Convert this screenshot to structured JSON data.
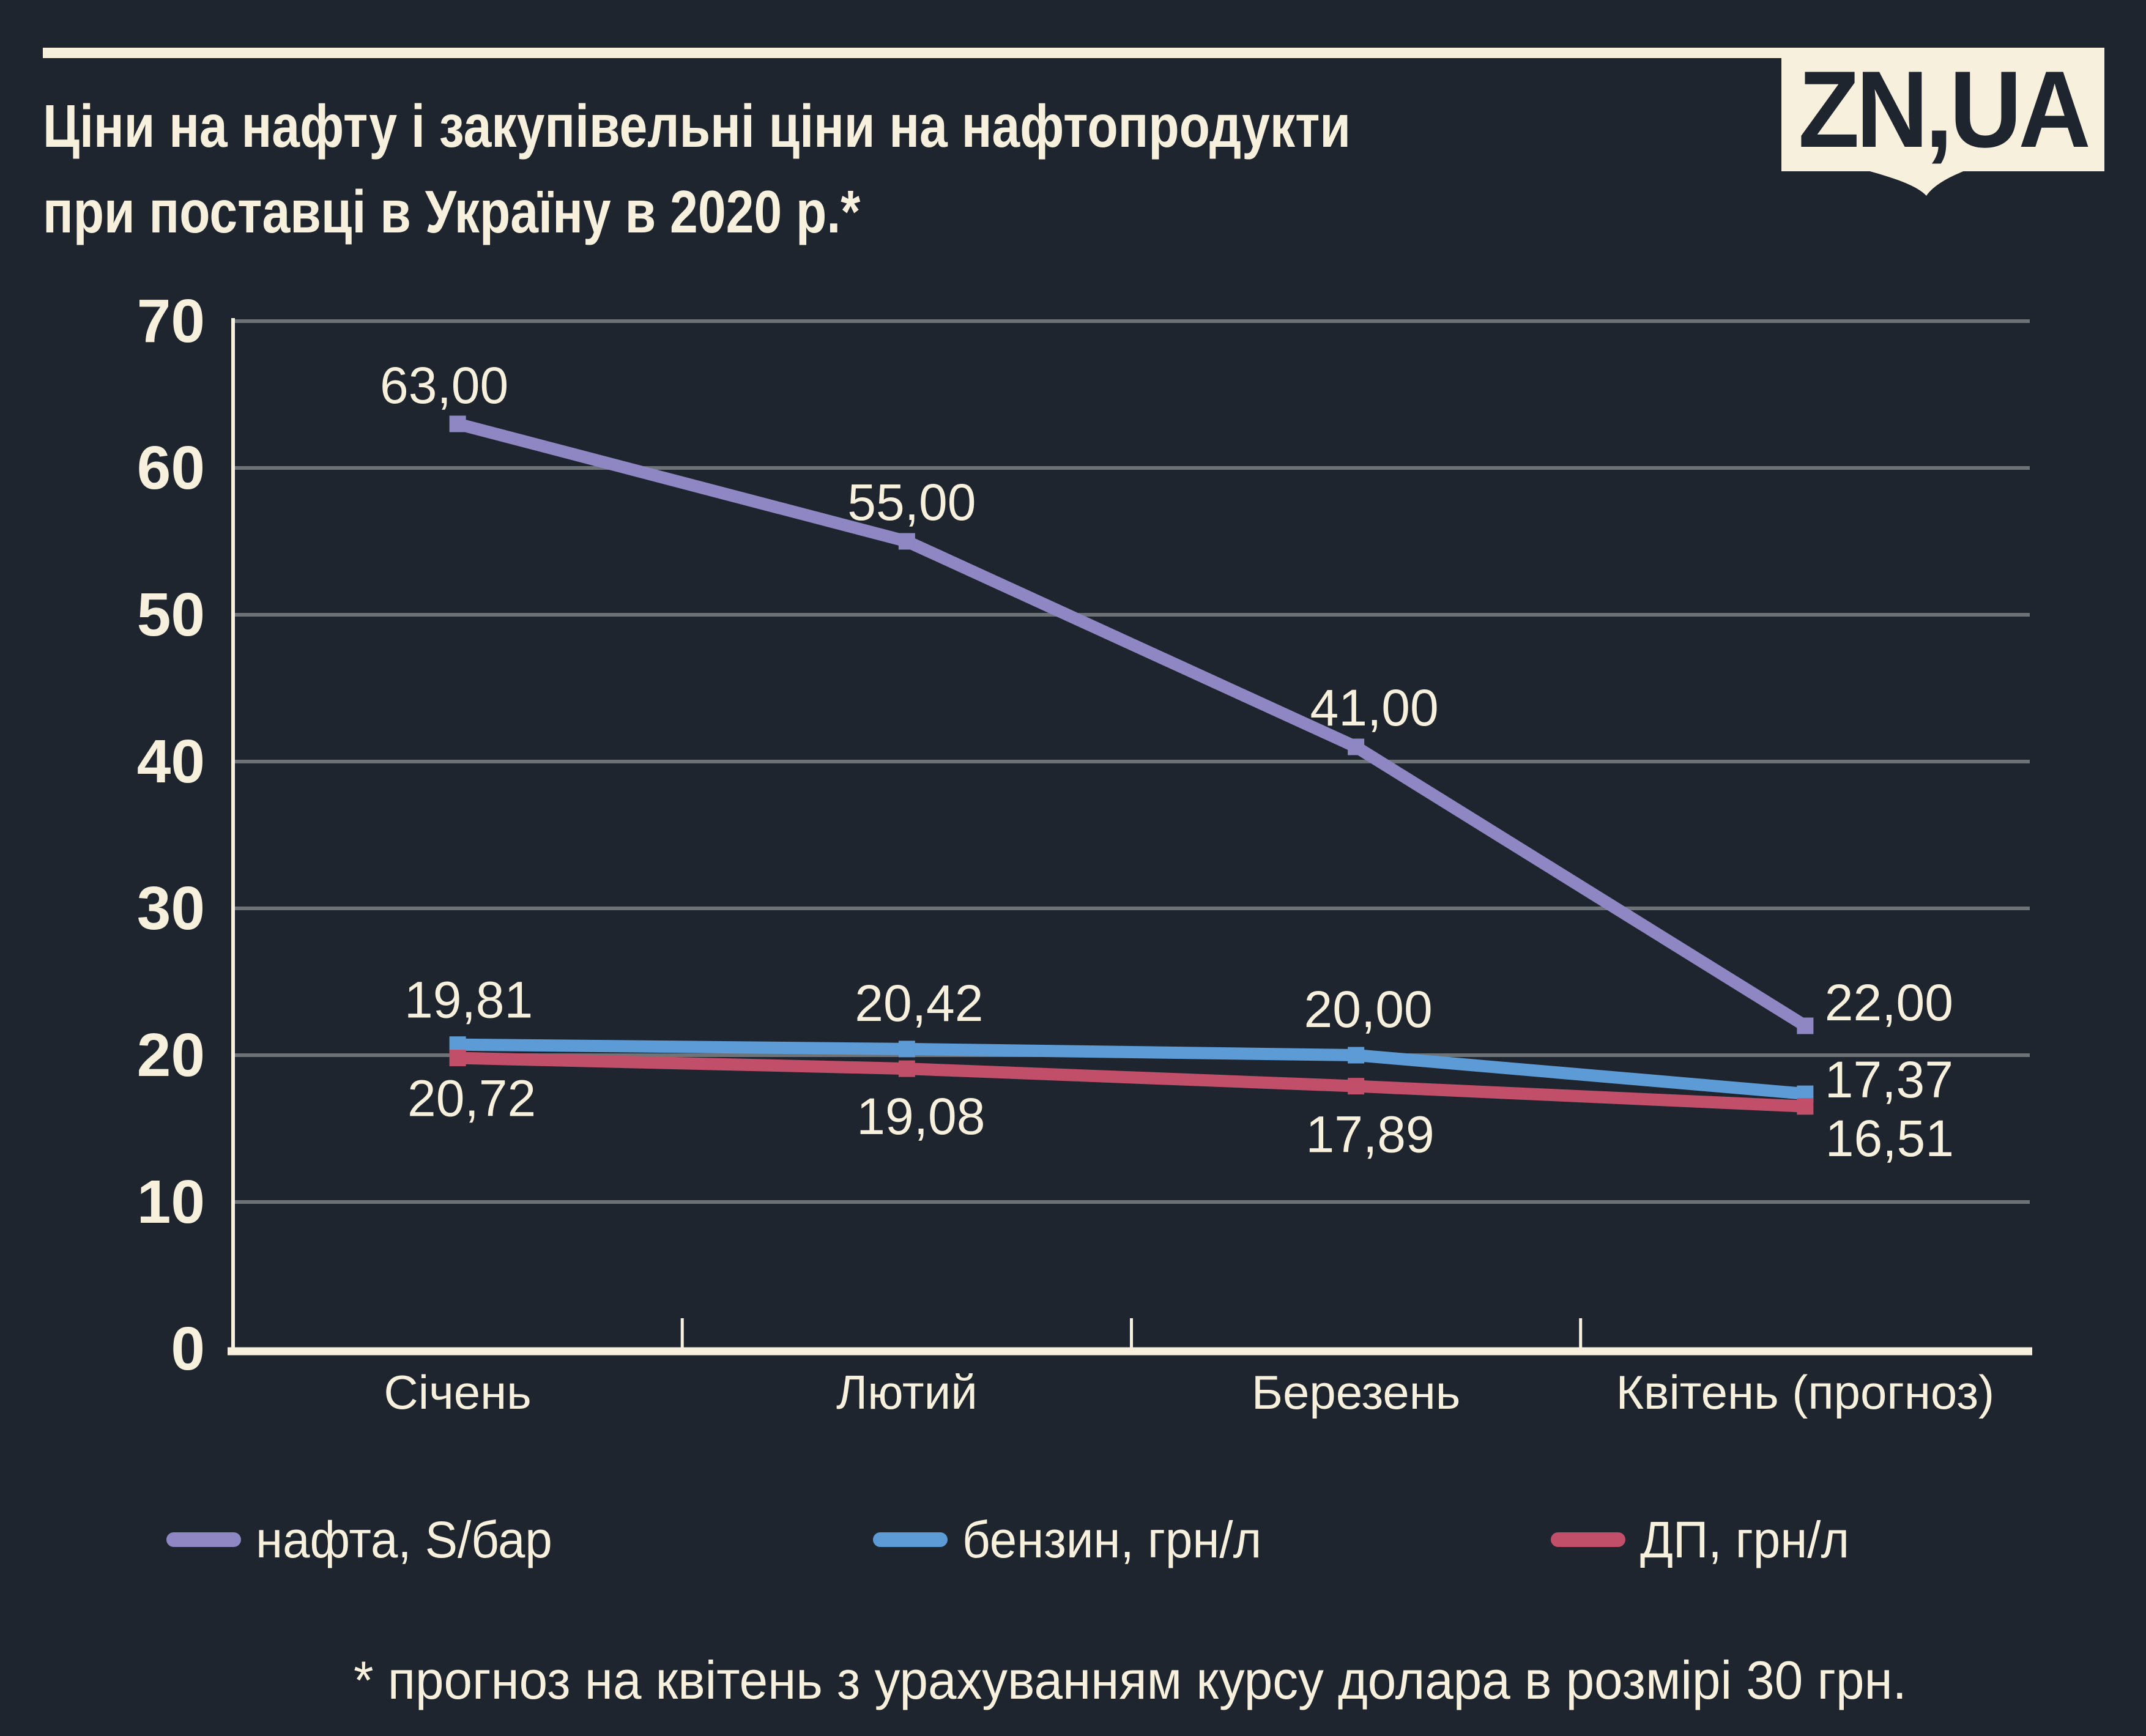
{
  "page": {
    "background": "#1e252e",
    "accent_cream": "#f6f0dd",
    "grid_color": "#6e7378"
  },
  "header": {
    "title_line1": "Ціни на нафту і закупівельні ціни на нафтопродукти",
    "title_line2": "при поставці в Україну в 2020 р.*",
    "brand": "ZN,UA"
  },
  "footnote": "* прогноз на квітень з урахуванням курсу долара в розмірі 30 грн.",
  "chart_data": {
    "type": "line",
    "title": "Ціни на нафту і закупівельні ціни на нафтопродукти при поставці в Україну в 2020 р.*",
    "categories": [
      "Січень",
      "Лютий",
      "Березень",
      "Квітень (прогноз)"
    ],
    "ylim": [
      0,
      70
    ],
    "yticks": [
      0,
      10,
      20,
      30,
      40,
      50,
      60,
      70
    ],
    "grid": true,
    "legend_position": "bottom",
    "series": [
      {
        "name": "нафта, S/бар",
        "color": "#8e87c3",
        "values": [
          63.0,
          55.0,
          41.0,
          22.0
        ],
        "point_labels": [
          "63,00",
          "55,00",
          "41,00",
          "22,00"
        ],
        "label_offsets": [
          [
            -22,
            -63
          ],
          [
            8,
            -64
          ],
          [
            30,
            -64
          ],
          [
            137,
            -38
          ]
        ]
      },
      {
        "name": "бензин, грн/л",
        "color": "#5c9bd5",
        "values": [
          20.72,
          20.42,
          20.0,
          17.37
        ],
        "point_labels": [
          "20,72",
          "20,42",
          "20,00",
          "17,37"
        ],
        "label_offsets": [
          [
            23,
            88
          ],
          [
            20,
            -75
          ],
          [
            20,
            -75
          ],
          [
            137,
            -23
          ]
        ]
      },
      {
        "name": "ДП, грн/л",
        "color": "#c24f6a",
        "values": [
          19.81,
          19.08,
          17.89,
          16.51
        ],
        "point_labels": [
          "19,81",
          "19,08",
          "17,89",
          "16,51"
        ],
        "label_offsets": [
          [
            18,
            -95
          ],
          [
            23,
            78
          ],
          [
            23,
            79
          ],
          [
            138,
            52
          ]
        ]
      }
    ]
  }
}
